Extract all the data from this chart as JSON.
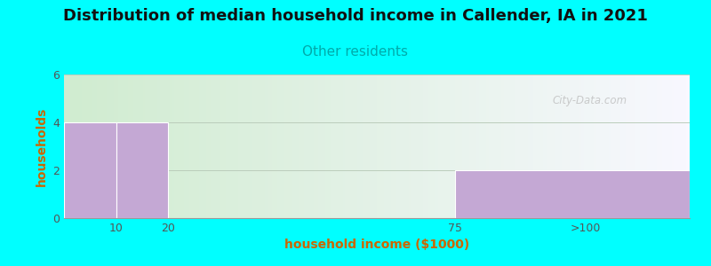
{
  "title": "Distribution of median household income in Callender, IA in 2021",
  "subtitle": "Other residents",
  "xlabel": "household income ($1000)",
  "ylabel": "households",
  "background_color": "#00FFFF",
  "bar_color": "#C4A8D4",
  "bar_edge_color": "#ffffff",
  "title_fontsize": 13,
  "subtitle_fontsize": 11,
  "subtitle_color": "#00AAAA",
  "axis_label_fontsize": 10,
  "axis_label_color": "#CC6600",
  "tick_label_color": "#555555",
  "ylim": [
    0,
    6
  ],
  "yticks": [
    0,
    2,
    4,
    6
  ],
  "watermark": "City-Data.com",
  "grid_color": "#bbccbb",
  "xlim": [
    0,
    120
  ],
  "xtick_positions": [
    10,
    20,
    75,
    100
  ],
  "xtick_labels": [
    "10",
    "20",
    "75",
    ">100"
  ],
  "bins": [
    {
      "x_left": 0,
      "x_right": 10,
      "height": 4,
      "label": "10"
    },
    {
      "x_left": 10,
      "x_right": 20,
      "height": 4,
      "label": "20"
    },
    {
      "x_left": 20,
      "x_right": 75,
      "height": 0,
      "label": "75"
    },
    {
      "x_left": 75,
      "x_right": 120,
      "height": 2,
      "label": ">100"
    }
  ]
}
